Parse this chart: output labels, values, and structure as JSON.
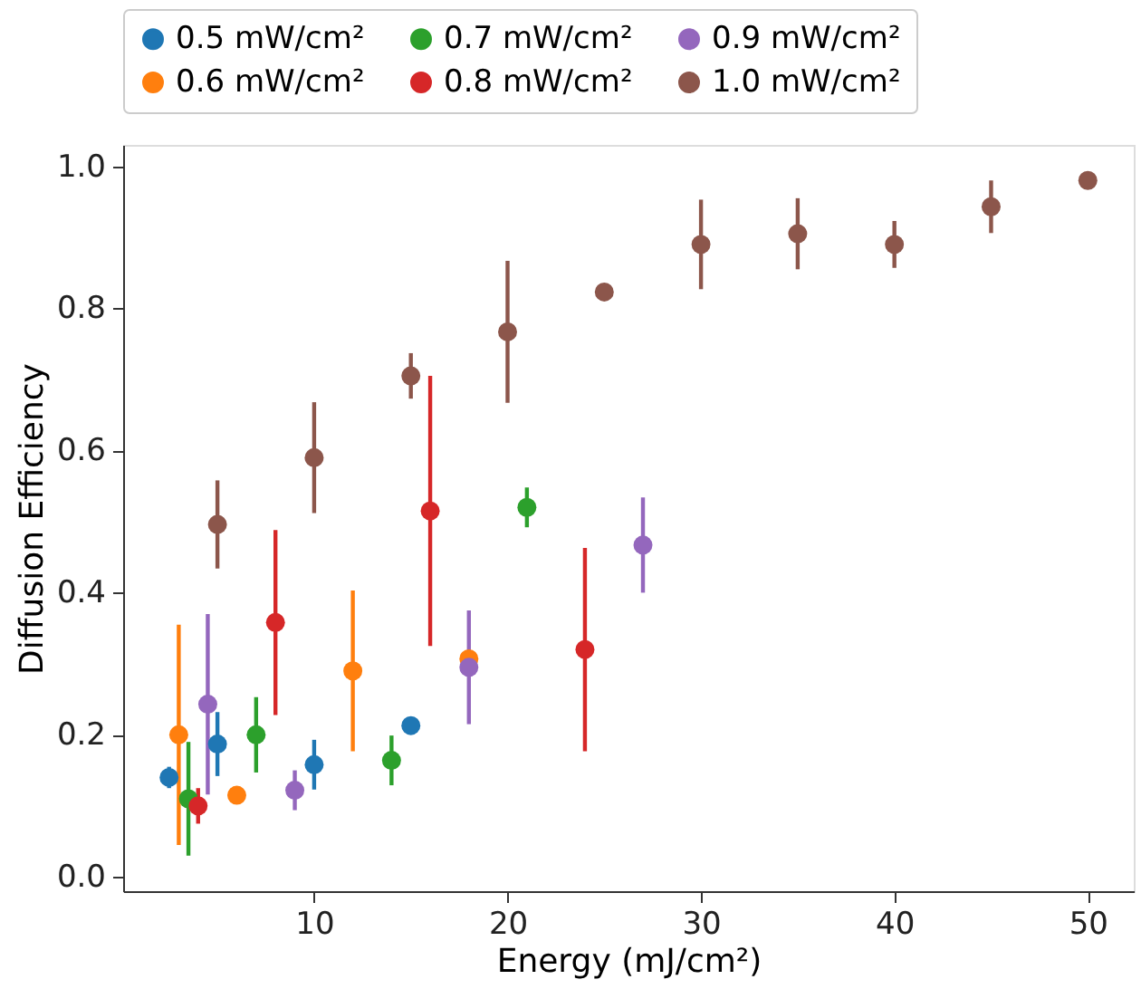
{
  "chart_data": {
    "type": "scatter",
    "xlabel": "Energy (mJ/cm²)",
    "ylabel": "Diffusion Efficiency",
    "xlim": [
      0.125,
      52.375
    ],
    "ylim": [
      -0.02,
      1.03
    ],
    "xticks": [
      10,
      20,
      30,
      40,
      50
    ],
    "yticks": [
      {
        "value": 0,
        "label": "0.0"
      },
      0.2,
      0.4,
      0.6,
      0.8,
      {
        "value": 1,
        "label": "1.0"
      }
    ],
    "grid": false,
    "legend": "top",
    "marker": "circle",
    "series": [
      {
        "name": "0.5 mW/cm²",
        "color": "#1f77b4",
        "x": [
          2.5,
          5,
          10,
          15
        ],
        "values": [
          0.14,
          0.187,
          0.158,
          0.213
        ],
        "errors": [
          0.015,
          0.045,
          0.035,
          0.01
        ]
      },
      {
        "name": "0.6 mW/cm²",
        "color": "#ff7f0e",
        "x": [
          3,
          6,
          12,
          18
        ],
        "values": [
          0.2,
          0.115,
          0.29,
          0.307
        ],
        "errors": [
          0.155,
          null,
          0.113,
          0.01
        ]
      },
      {
        "name": "0.7 mW/cm²",
        "color": "#2ca02c",
        "x": [
          3.5,
          7,
          14,
          21
        ],
        "values": [
          0.11,
          0.2,
          0.164,
          0.52
        ],
        "errors": [
          0.08,
          0.053,
          0.035,
          0.028
        ]
      },
      {
        "name": "0.8 mW/cm²",
        "color": "#d62728",
        "x": [
          4,
          8,
          16,
          24
        ],
        "values": [
          0.1,
          0.358,
          0.515,
          0.32
        ],
        "errors": [
          0.025,
          0.13,
          0.19,
          0.143
        ]
      },
      {
        "name": "0.9 mW/cm²",
        "color": "#9467bd",
        "x": [
          4.5,
          9,
          18,
          27
        ],
        "values": [
          0.243,
          0.122,
          0.295,
          0.467
        ],
        "errors": [
          0.127,
          0.028,
          0.08,
          0.067
        ]
      },
      {
        "name": "1.0 mW/cm²",
        "color": "#8c564b",
        "x": [
          5,
          10,
          15,
          20,
          25,
          30,
          35,
          40,
          45,
          50
        ],
        "values": [
          0.496,
          0.59,
          0.705,
          0.767,
          0.823,
          0.89,
          0.905,
          0.89,
          0.943,
          0.98
        ],
        "errors": [
          0.062,
          0.078,
          0.032,
          0.1,
          null,
          0.063,
          0.05,
          0.033,
          0.037,
          null
        ]
      }
    ]
  }
}
